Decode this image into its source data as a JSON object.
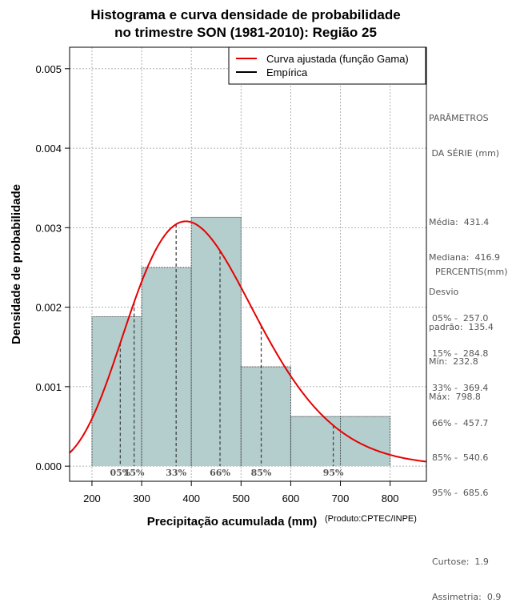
{
  "chart_data": {
    "type": "histogram",
    "title": [
      "Histograma e curva densidade de probabilidade",
      "no trimestre SON (1981-2010): Região 25"
    ],
    "xlabel": "Precipitação acumulada (mm)",
    "ylabel": "Densidade de probabilidade",
    "credit": "(Produto:CPTEC/INPE)",
    "xlim": [
      155,
      873
    ],
    "ylim": [
      -0.00019,
      0.00527
    ],
    "x_ticks": [
      200,
      300,
      400,
      500,
      600,
      700,
      800
    ],
    "y_ticks": [
      0.0,
      0.001,
      0.002,
      0.003,
      0.004,
      0.005
    ],
    "y_tick_labels": [
      "0.000",
      "0.001",
      "0.002",
      "0.003",
      "0.004",
      "0.005"
    ],
    "grid": true,
    "bins": [
      {
        "start": 200,
        "end": 300,
        "density": 0.00188
      },
      {
        "start": 300,
        "end": 400,
        "density": 0.0025
      },
      {
        "start": 400,
        "end": 500,
        "density": 0.00313
      },
      {
        "start": 500,
        "end": 600,
        "density": 0.00125
      },
      {
        "start": 600,
        "end": 800,
        "density": 0.000625
      }
    ],
    "fitted_curve": {
      "name": "Curva ajustada (função Gama)",
      "distribution": "gamma",
      "mean": 431.4,
      "sd": 135.4,
      "peak_x": 392,
      "peak_density": 0.00308,
      "color": "#e60000"
    },
    "legend": [
      {
        "label": "Curva ajustada (função Gama)",
        "color": "#e60000"
      },
      {
        "label": "Empírica",
        "color": "#000000"
      }
    ],
    "legend_position": "top-right",
    "percentiles": [
      {
        "label": "05%",
        "value": 257.0
      },
      {
        "label": "15%",
        "value": 284.8
      },
      {
        "label": "33%",
        "value": 369.4
      },
      {
        "label": "66%",
        "value": 457.7
      },
      {
        "label": "85%",
        "value": 540.6
      },
      {
        "label": "95%",
        "value": 685.6
      }
    ],
    "bar_color": "#b4cdcd"
  },
  "side_panel": {
    "params_title": [
      "PARÂMETROS",
      " DA SÉRIE (mm)"
    ],
    "params": [
      "Média:  431.4",
      "Mediana:  416.9",
      "Desvio",
      "padrão:  135.4",
      "Mín:  232.8",
      "Máx:  798.8"
    ],
    "percentis_title": "PERCENTIS(mm)",
    "percentis": [
      "05% -  257.0",
      "15% -  284.8",
      "33% -  369.4",
      "66% -  457.7",
      "85% -  540.6",
      "95% -  685.6"
    ],
    "stats": [
      "Curtose:  1.9",
      "Assimetria:  0.9"
    ]
  }
}
